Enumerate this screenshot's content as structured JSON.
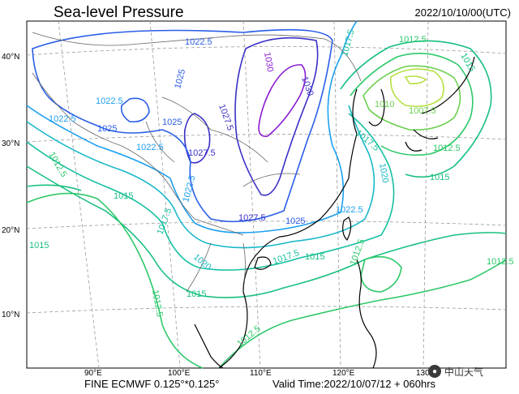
{
  "header": {
    "title": "Sea-level Pressure",
    "timestamp": "2022/10/10/00(UTC)"
  },
  "map": {
    "lat_labels": [
      "40°N",
      "30°N",
      "20°N",
      "10°N"
    ],
    "lon_labels": [
      "90°E",
      "100°E",
      "110°E",
      "120°E",
      "130°E"
    ],
    "contour_labels": [
      "1022.5",
      "1025",
      "1022.5",
      "1022.5",
      "1025",
      "1025",
      "1022.5",
      "1027.5",
      "1027.5",
      "1030",
      "1030",
      "1017.5",
      "1012.5",
      "1015",
      "1010",
      "1007.5",
      "1012.5",
      "1017.5",
      "1015",
      "1020",
      "1022.5",
      "1012.5",
      "1015",
      "1017.5",
      "1020",
      "1022.5",
      "1027.5",
      "1025",
      "1017.5",
      "1015",
      "1012.5",
      "1015",
      "1012.5",
      "1012.5",
      "1015",
      "1012.5"
    ],
    "colors": {
      "c1030": "#8a1bd1",
      "c1027": "#3a2fc7",
      "c1025": "#2b5ee8",
      "c1022": "#1ea0f0",
      "c1020": "#18b8c8",
      "c1017": "#16c0a0",
      "c1015": "#19c080",
      "c1012": "#2ec86a",
      "c1010": "#6cd050",
      "c1007": "#b6e040",
      "coast": "#000000",
      "border": "#666666",
      "grid": "#9a9a9a"
    }
  },
  "footer": {
    "model": "FINE ECMWF 0.125°*0.125°",
    "valid": "Valid Time:2022/10/07/12 + 060hrs"
  },
  "watermark": {
    "text": "中山天气"
  }
}
